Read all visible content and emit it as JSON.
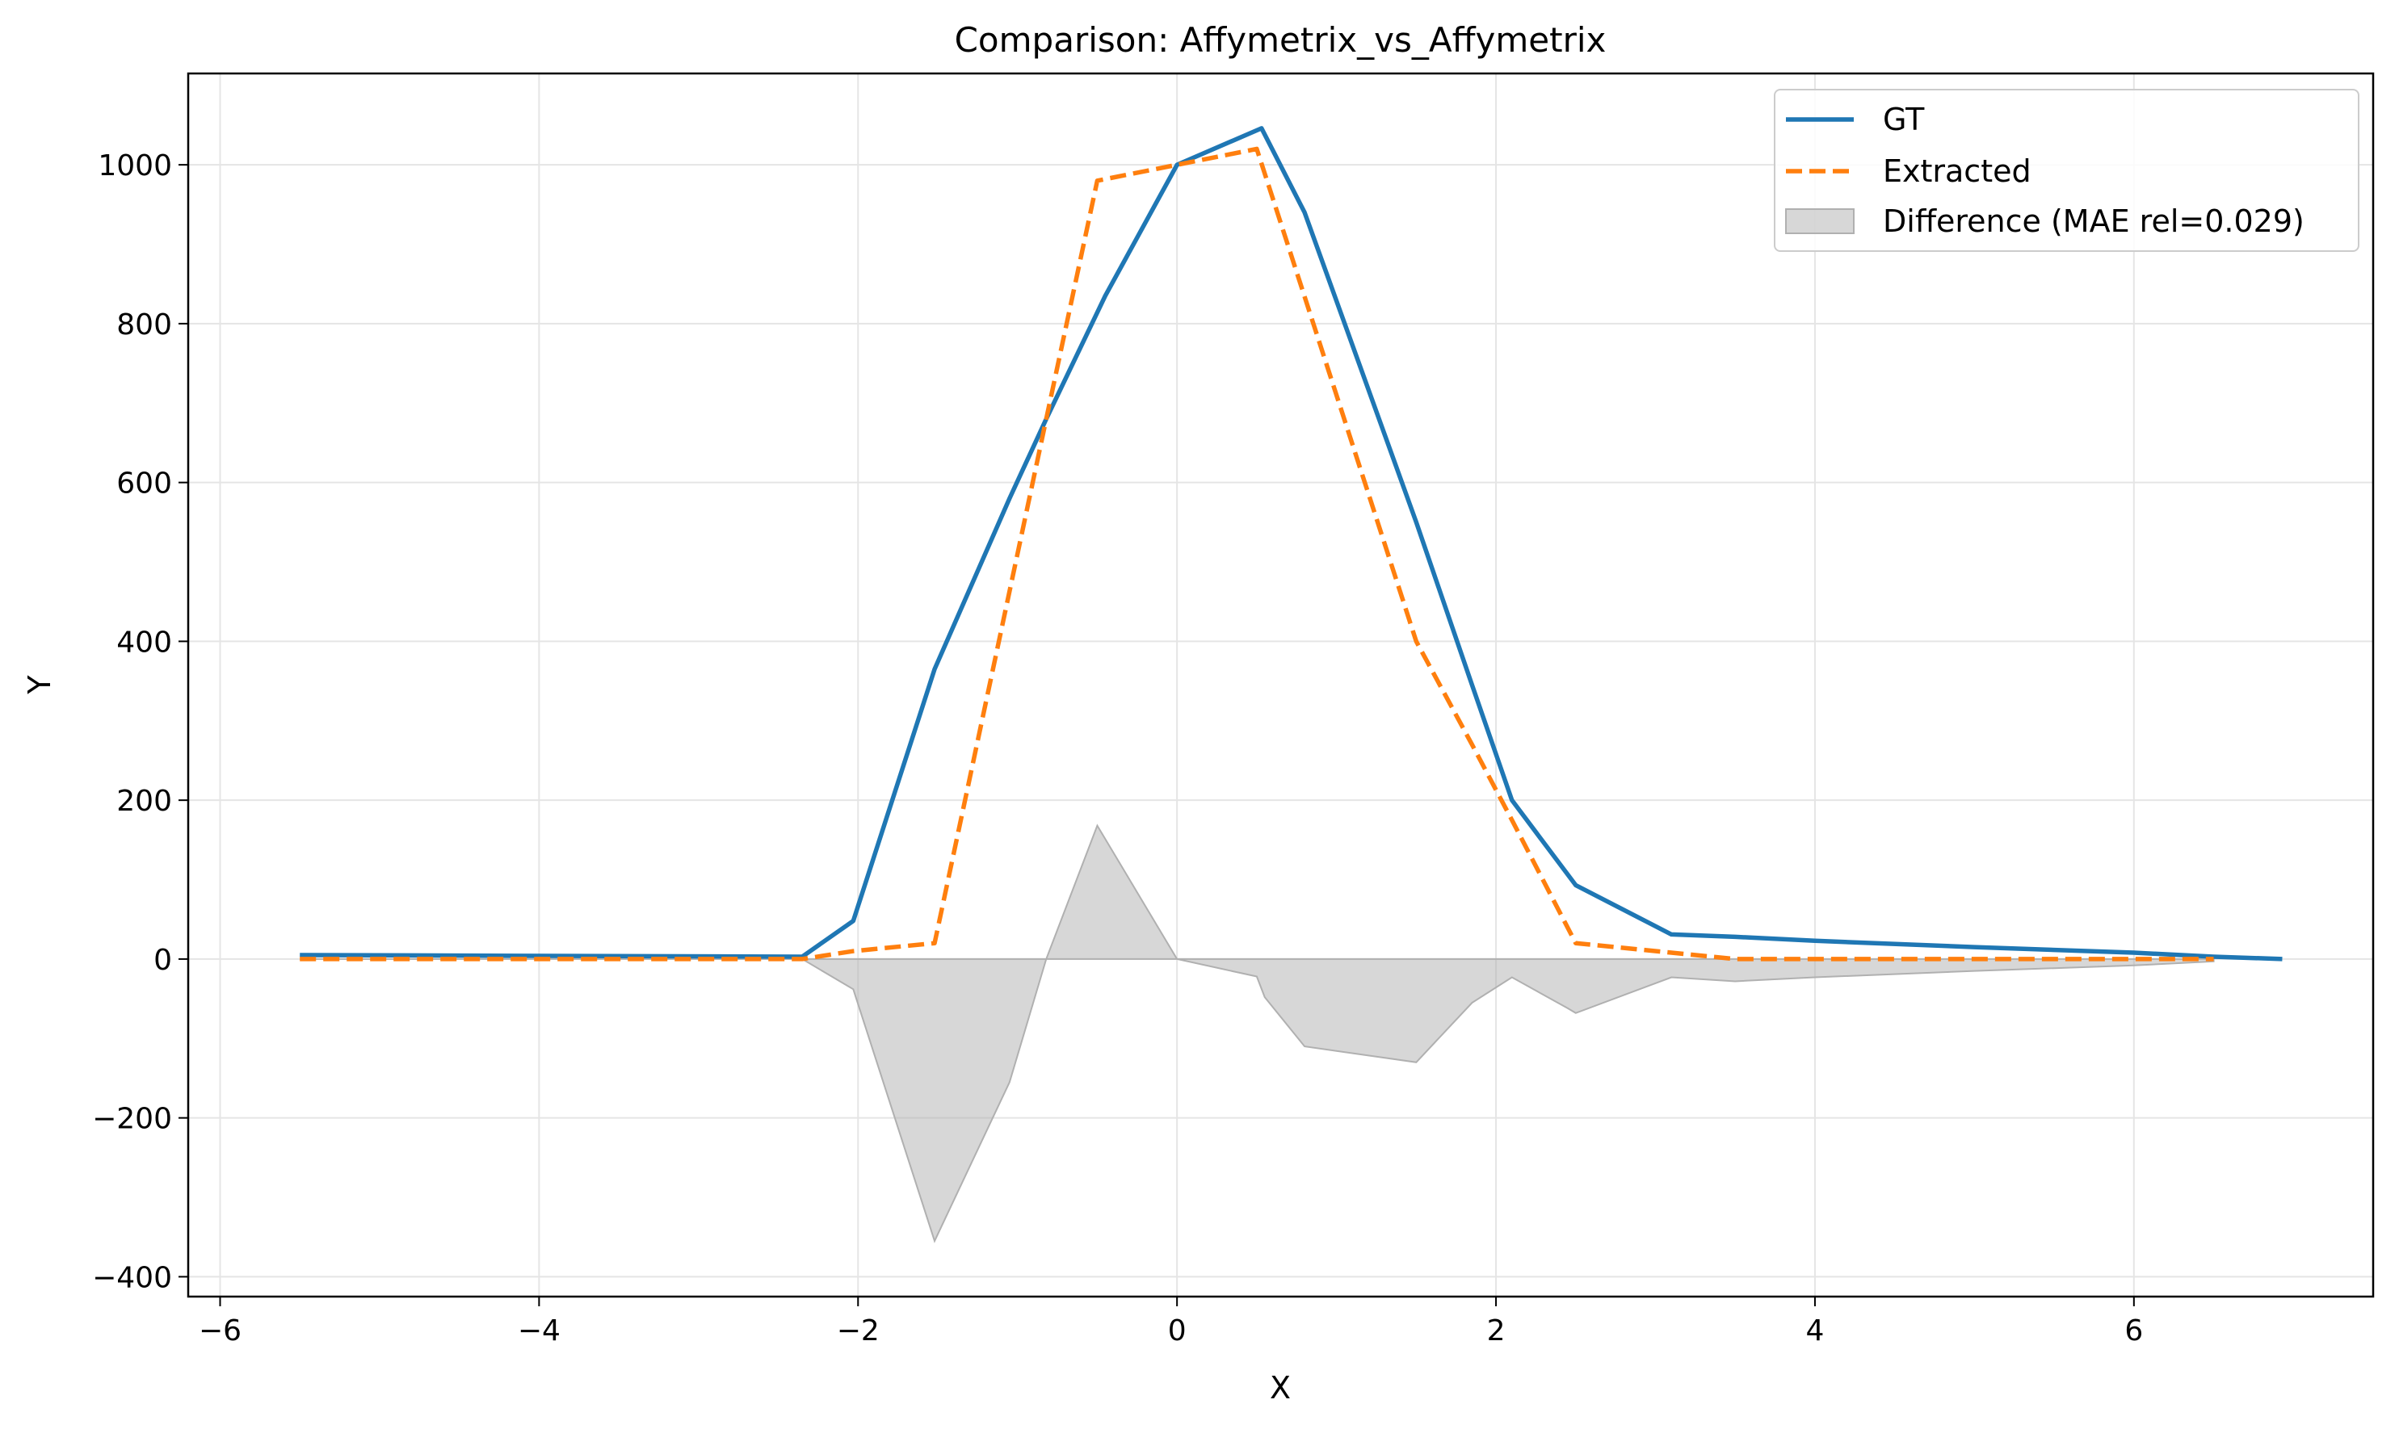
{
  "colors": {
    "gt": "#1f77b4",
    "extracted": "#ff7f0e",
    "difference": "#b0b0b0",
    "grid": "#e5e5e5",
    "axis": "#000000"
  },
  "chart_data": {
    "type": "line",
    "title": "Comparison: Affymetrix_vs_Affymetrix",
    "xlabel": "X",
    "ylabel": "Y",
    "xlim": [
      -6.2,
      7.5
    ],
    "ylim": [
      -425,
      1115
    ],
    "xticks": [
      -6,
      -4,
      -2,
      0,
      2,
      4,
      6
    ],
    "yticks": [
      -400,
      -200,
      0,
      200,
      400,
      600,
      800,
      1000
    ],
    "grid": true,
    "legend_position": "top-right",
    "legend": [
      "GT",
      "Extracted",
      "Difference (MAE rel=0.029)"
    ],
    "series": [
      {
        "name": "GT",
        "style": "solid",
        "x": [
          -5.5,
          -2.35,
          -2.03,
          -1.52,
          -1.05,
          -0.82,
          -0.45,
          0.0,
          0.53,
          0.8,
          1.5,
          1.85,
          2.1,
          2.5,
          3.1,
          3.5,
          4.0,
          5.0,
          6.0,
          6.5,
          6.93
        ],
        "y": [
          5,
          3,
          48,
          365,
          580,
          680,
          835,
          1000,
          1046,
          940,
          550,
          345,
          200,
          93,
          31,
          28,
          23,
          15,
          8,
          3,
          0
        ]
      },
      {
        "name": "Extracted",
        "style": "dashed",
        "x": [
          -5.5,
          -2.35,
          -2.03,
          -1.52,
          -0.82,
          -0.5,
          0.0,
          0.5,
          1.5,
          1.85,
          2.1,
          2.5,
          3.1,
          3.5,
          4.0,
          5.0,
          6.0,
          6.5
        ],
        "y": [
          0,
          0,
          10,
          20,
          680,
          980,
          1000,
          1020,
          400,
          270,
          175,
          20,
          8,
          0,
          0,
          0,
          0,
          0
        ]
      },
      {
        "name": "Difference (MAE rel=0.029)",
        "style": "fill",
        "x": [
          -5.5,
          -2.35,
          -2.03,
          -1.52,
          -1.05,
          -0.82,
          -0.5,
          0.0,
          0.5,
          0.55,
          0.8,
          1.5,
          1.85,
          2.1,
          2.45,
          2.5,
          3.1,
          3.5,
          4.0,
          5.0,
          6.0,
          6.5
        ],
        "y": [
          0,
          0,
          -38,
          -355,
          -155,
          0,
          168,
          0,
          -22,
          -48,
          -110,
          -130,
          -55,
          -23,
          -62,
          -68,
          -23,
          -28,
          -23,
          -15,
          -8,
          -3
        ]
      }
    ]
  }
}
